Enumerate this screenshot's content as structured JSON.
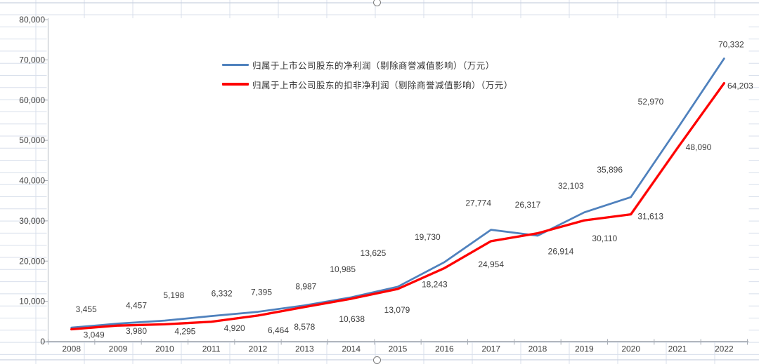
{
  "app": {
    "context": "spreadsheet-with-embedded-chart",
    "selection_handles": [
      "top-center",
      "bottom-center"
    ]
  },
  "chart_data": {
    "type": "line",
    "title": "",
    "categories": [
      "2008",
      "2009",
      "2010",
      "2011",
      "2012",
      "2013",
      "2014",
      "2015",
      "2016",
      "2017",
      "2018",
      "2019",
      "2020",
      "2021",
      "2022"
    ],
    "series": [
      {
        "name": "归属于上市公司股东的净利润（剔除商誉减值影响）（万元）",
        "color": "#4F81BD",
        "values": [
          3455,
          4457,
          5198,
          6332,
          7395,
          8987,
          10985,
          13625,
          19730,
          27774,
          26317,
          32103,
          35896,
          52970,
          70332
        ],
        "labels": [
          "3,455",
          "4,457",
          "5,198",
          "6,332",
          "7,395",
          "8,987",
          "10,985",
          "13,625",
          "19,730",
          "27,774",
          "26,317",
          "32,103",
          "35,896",
          "52,970",
          "70,332"
        ]
      },
      {
        "name": "归属于上市公司股东的扣非净利润（剔除商誉减值影响）（万元）",
        "color": "#FE0000",
        "values": [
          3049,
          3980,
          4295,
          4920,
          6464,
          8578,
          10638,
          13079,
          18243,
          24954,
          26914,
          30110,
          31613,
          48090,
          64203
        ],
        "labels": [
          "3,049",
          "3,980",
          "4,295",
          "4,920",
          "6,464",
          "8,578",
          "10,638",
          "13,079",
          "18,243",
          "24,954",
          "26,914",
          "30,110",
          "31,613",
          "48,090",
          "64,203"
        ]
      }
    ],
    "y_axis": {
      "min": 0,
      "max": 80000,
      "step": 10000,
      "tick_labels": [
        "0",
        "10,000",
        "20,000",
        "30,000",
        "40,000",
        "50,000",
        "60,000",
        "70,000",
        "80,000"
      ]
    },
    "x_axis": {
      "tick_labels_are_categories": true
    },
    "gridlines": false,
    "legend_position": "inside-top-left"
  },
  "colors": {
    "series_blue": "#4F81BD",
    "series_red": "#FE0000",
    "axis_text": "#3f3f3f",
    "data_label_text": "#404040",
    "sheet_grid": "#d8dfeb",
    "chart_border": "#c9d2e0",
    "x_axis_line": "#a9aeb6",
    "y_axis_line": "#c2c7ce",
    "handle_border": "#7c7c7c"
  }
}
